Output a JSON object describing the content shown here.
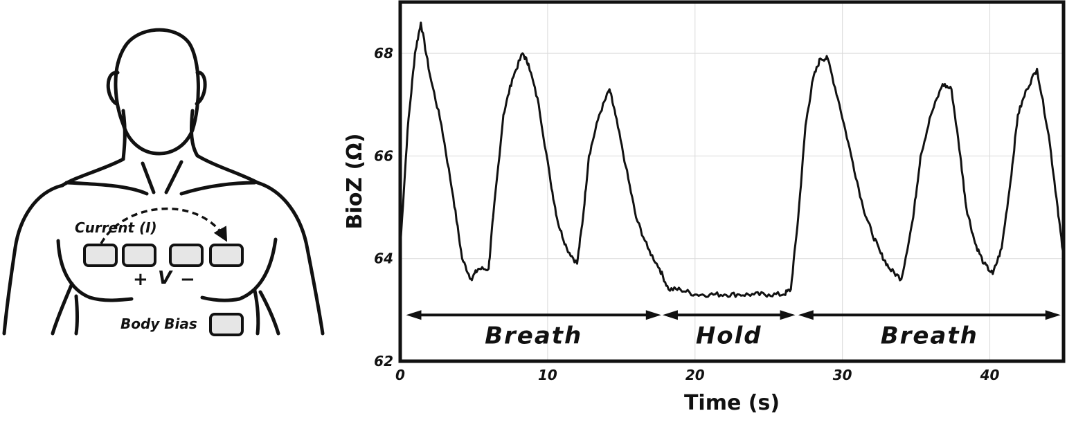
{
  "illustration": {
    "current_label": "Current (I)",
    "plus_sign": "+",
    "voltage_label": "V",
    "minus_sign": "−",
    "body_bias_label": "Body Bias"
  },
  "chart_data": {
    "type": "line",
    "xlabel": "Time (s)",
    "ylabel": "BioZ (Ω)",
    "xlim": [
      0,
      45
    ],
    "ylim": [
      62,
      69
    ],
    "x_ticks": [
      0,
      10,
      20,
      30,
      40
    ],
    "y_ticks": [
      62,
      64,
      66,
      68
    ],
    "grid": true,
    "series": [
      {
        "x": [
          0,
          0.5,
          1.0,
          1.4,
          2.0,
          2.8,
          3.6,
          4.2,
          4.8,
          5.3,
          6.0,
          6.3,
          7.0,
          7.6,
          8.3,
          8.7,
          9.4,
          10.2,
          10.7,
          11.3,
          12.0,
          12.4,
          12.8,
          13.5,
          14.2,
          14.6,
          15.3,
          16.0,
          16.8,
          17.6,
          18.2,
          19.0,
          20.0,
          21.0,
          22.0,
          23.0,
          24.0,
          25.0,
          26.0,
          26.5,
          27.0,
          27.5,
          28.0,
          28.5,
          29.0,
          29.8,
          30.6,
          31.4,
          32.0,
          32.6,
          33.2,
          34.0,
          34.8,
          35.3,
          36.0,
          36.8,
          37.4,
          38.0,
          38.4,
          39.0,
          39.6,
          40.2,
          40.8,
          41.4,
          41.9,
          42.5,
          43.2,
          44.0,
          44.6,
          45.0
        ],
        "y": [
          64.2,
          66.5,
          68.0,
          68.6,
          67.6,
          66.6,
          65.2,
          64.0,
          63.6,
          63.8,
          63.8,
          64.8,
          66.8,
          67.5,
          68.0,
          67.8,
          67.0,
          65.5,
          64.7,
          64.2,
          63.9,
          64.8,
          66.0,
          66.8,
          67.3,
          66.8,
          65.8,
          64.8,
          64.2,
          63.8,
          63.4,
          63.4,
          63.3,
          63.3,
          63.3,
          63.3,
          63.3,
          63.3,
          63.3,
          63.4,
          64.8,
          66.6,
          67.5,
          67.9,
          67.9,
          67.0,
          66.0,
          65.0,
          64.5,
          64.1,
          63.8,
          63.6,
          64.8,
          66.0,
          66.8,
          67.4,
          67.3,
          66.0,
          65.0,
          64.3,
          63.9,
          63.7,
          64.2,
          65.5,
          66.8,
          67.3,
          67.7,
          66.4,
          65.0,
          64.0
        ]
      }
    ],
    "annotations": [
      {
        "label": "Breath",
        "x_start": 0.4,
        "x_end": 17.7
      },
      {
        "label": "Hold",
        "x_start": 17.8,
        "x_end": 26.8
      },
      {
        "label": "Breath",
        "x_start": 27.0,
        "x_end": 44.8
      }
    ],
    "annotation_y": 62.9
  }
}
